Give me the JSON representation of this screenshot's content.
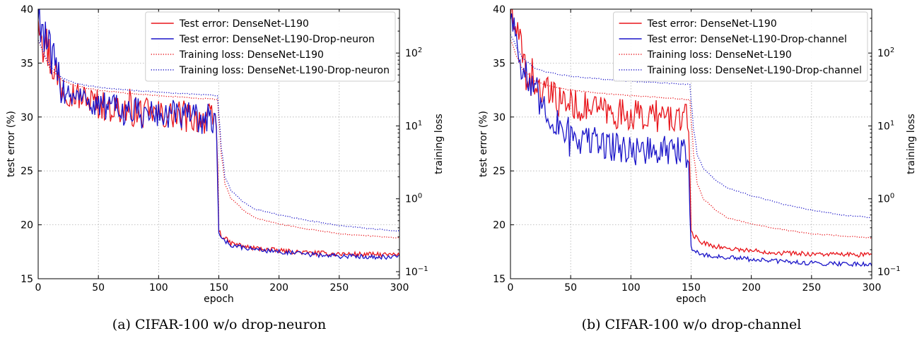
{
  "chart_data": [
    {
      "type": "line",
      "caption": "(a) CIFAR-100 w/o drop-neuron",
      "xlabel": "epoch",
      "ylabel": "test error (%)",
      "ylabel_right": "training loss",
      "xlim": [
        0,
        300
      ],
      "ylim": [
        15,
        40
      ],
      "ylim_right": [
        0.08,
        400
      ],
      "y_right_scale": "log",
      "x_ticks": [
        0,
        50,
        100,
        150,
        200,
        250,
        300
      ],
      "y_ticks": [
        15,
        20,
        25,
        30,
        35,
        40
      ],
      "y_right_ticks": [
        {
          "value": 0.1,
          "label": "10-1",
          "base": "10",
          "exp": "−1"
        },
        {
          "value": 1,
          "label": "100",
          "base": "10",
          "exp": "0"
        },
        {
          "value": 10,
          "label": "101",
          "base": "10",
          "exp": "1"
        },
        {
          "value": 100,
          "label": "102",
          "base": "10",
          "exp": "2"
        }
      ],
      "grid": true,
      "legend_position": "top-right",
      "series": [
        {
          "name": "Test error: DenseNet-L190",
          "color": "#e8141a",
          "style": "solid",
          "axis": "left",
          "x": [
            0,
            3,
            6,
            10,
            15,
            20,
            25,
            30,
            40,
            50,
            60,
            70,
            80,
            90,
            100,
            110,
            120,
            130,
            140,
            148,
            150,
            152,
            160,
            175,
            200,
            225,
            250,
            275,
            300
          ],
          "y": [
            40,
            38.5,
            37,
            35.5,
            33.8,
            33,
            32.5,
            32.1,
            31.6,
            31.2,
            30.9,
            30.7,
            30.5,
            30.3,
            30.2,
            30.1,
            30,
            29.9,
            29.8,
            29.7,
            19.5,
            19,
            18.3,
            17.9,
            17.6,
            17.4,
            17.3,
            17.25,
            17.2
          ]
        },
        {
          "name": "Test error: DenseNet-L190-Drop-neuron",
          "color": "#1a14c8",
          "style": "solid",
          "axis": "left",
          "x": [
            0,
            3,
            6,
            10,
            15,
            20,
            25,
            30,
            40,
            50,
            60,
            70,
            80,
            90,
            100,
            110,
            120,
            130,
            140,
            148,
            150,
            152,
            160,
            175,
            200,
            225,
            250,
            275,
            300
          ],
          "y": [
            40,
            38.5,
            37,
            35.6,
            33.8,
            33,
            32.4,
            32,
            31.5,
            31.1,
            30.8,
            30.6,
            30.4,
            30.3,
            30.2,
            30.1,
            30,
            29.9,
            29.8,
            29.7,
            19.3,
            18.8,
            18.1,
            17.8,
            17.5,
            17.25,
            17.1,
            17.05,
            17
          ]
        },
        {
          "name": "Training loss: DenseNet-L190",
          "color": "#e8141a",
          "style": "dotted",
          "axis": "right",
          "x": [
            0,
            5,
            10,
            20,
            30,
            40,
            50,
            75,
            100,
            125,
            149,
            150,
            152,
            155,
            160,
            170,
            180,
            200,
            225,
            250,
            275,
            300
          ],
          "y": [
            150,
            90,
            60,
            42,
            36,
            33,
            31,
            28,
            26,
            24.5,
            23,
            12,
            4,
            1.6,
            1.0,
            0.7,
            0.55,
            0.45,
            0.38,
            0.33,
            0.31,
            0.29
          ]
        },
        {
          "name": "Training loss: DenseNet-L190-Drop-neuron",
          "color": "#1a14c8",
          "style": "dotted",
          "axis": "right",
          "x": [
            0,
            5,
            10,
            20,
            30,
            40,
            50,
            75,
            100,
            125,
            149,
            150,
            152,
            155,
            160,
            170,
            180,
            200,
            225,
            250,
            275,
            300
          ],
          "y": [
            150,
            95,
            65,
            45,
            39,
            36,
            34,
            31,
            29,
            27.5,
            26,
            14,
            5,
            2.0,
            1.3,
            0.9,
            0.72,
            0.6,
            0.5,
            0.43,
            0.39,
            0.36
          ]
        }
      ]
    },
    {
      "type": "line",
      "caption": "(b) CIFAR-100 w/o drop-channel",
      "xlabel": "epoch",
      "ylabel": "test error (%)",
      "ylabel_right": "training loss",
      "xlim": [
        0,
        300
      ],
      "ylim": [
        15,
        40
      ],
      "ylim_right": [
        0.08,
        400
      ],
      "y_right_scale": "log",
      "x_ticks": [
        0,
        50,
        100,
        150,
        200,
        250,
        300
      ],
      "y_ticks": [
        15,
        20,
        25,
        30,
        35,
        40
      ],
      "y_right_ticks": [
        {
          "value": 0.1,
          "label": "10-1",
          "base": "10",
          "exp": "−1"
        },
        {
          "value": 1,
          "label": "100",
          "base": "10",
          "exp": "0"
        },
        {
          "value": 10,
          "label": "101",
          "base": "10",
          "exp": "1"
        },
        {
          "value": 100,
          "label": "102",
          "base": "10",
          "exp": "2"
        }
      ],
      "grid": true,
      "legend_position": "top-right",
      "series": [
        {
          "name": "Test error: DenseNet-L190",
          "color": "#e8141a",
          "style": "solid",
          "axis": "left",
          "x": [
            0,
            3,
            6,
            10,
            15,
            20,
            25,
            30,
            40,
            50,
            60,
            70,
            80,
            90,
            100,
            110,
            120,
            130,
            140,
            148,
            150,
            152,
            160,
            175,
            200,
            225,
            250,
            275,
            300
          ],
          "y": [
            40,
            38.5,
            37,
            35.5,
            33.8,
            33,
            32.5,
            32.1,
            31.6,
            31.2,
            30.9,
            30.7,
            30.5,
            30.3,
            30.2,
            30.1,
            30,
            29.9,
            29.8,
            29.7,
            19.5,
            19,
            18.3,
            17.9,
            17.6,
            17.4,
            17.3,
            17.25,
            17.2
          ]
        },
        {
          "name": "Test error: DenseNet-L190-Drop-channel",
          "color": "#1a14c8",
          "style": "solid",
          "axis": "left",
          "x": [
            0,
            3,
            6,
            10,
            15,
            20,
            25,
            30,
            40,
            50,
            60,
            70,
            80,
            90,
            100,
            110,
            120,
            130,
            140,
            148,
            150,
            152,
            160,
            175,
            200,
            225,
            250,
            275,
            300
          ],
          "y": [
            40,
            38.5,
            37,
            35,
            33,
            32,
            31,
            30.3,
            29.2,
            28.5,
            28,
            27.7,
            27.4,
            27.2,
            27,
            26.9,
            26.8,
            26.8,
            26.7,
            26.6,
            18,
            17.6,
            17.2,
            17,
            16.8,
            16.6,
            16.45,
            16.4,
            16.35
          ]
        },
        {
          "name": "Training loss: DenseNet-L190",
          "color": "#e8141a",
          "style": "dotted",
          "axis": "right",
          "x": [
            0,
            5,
            10,
            20,
            30,
            40,
            50,
            75,
            100,
            125,
            149,
            150,
            152,
            155,
            160,
            170,
            180,
            200,
            225,
            250,
            275,
            300
          ],
          "y": [
            150,
            90,
            60,
            42,
            36,
            33,
            31,
            28,
            26,
            24.5,
            23,
            12,
            4,
            1.6,
            1.0,
            0.7,
            0.55,
            0.45,
            0.38,
            0.33,
            0.31,
            0.29
          ]
        },
        {
          "name": "Training loss: DenseNet-L190-Drop-channel",
          "color": "#1a14c8",
          "style": "dotted",
          "axis": "right",
          "x": [
            0,
            5,
            10,
            20,
            30,
            40,
            50,
            75,
            100,
            125,
            149,
            150,
            152,
            155,
            160,
            170,
            180,
            200,
            225,
            250,
            275,
            300
          ],
          "y": [
            180,
            120,
            85,
            62,
            55,
            51,
            48,
            44,
            41,
            39,
            37,
            22,
            9,
            4.0,
            2.6,
            1.8,
            1.4,
            1.1,
            0.85,
            0.7,
            0.6,
            0.55
          ]
        }
      ]
    }
  ]
}
